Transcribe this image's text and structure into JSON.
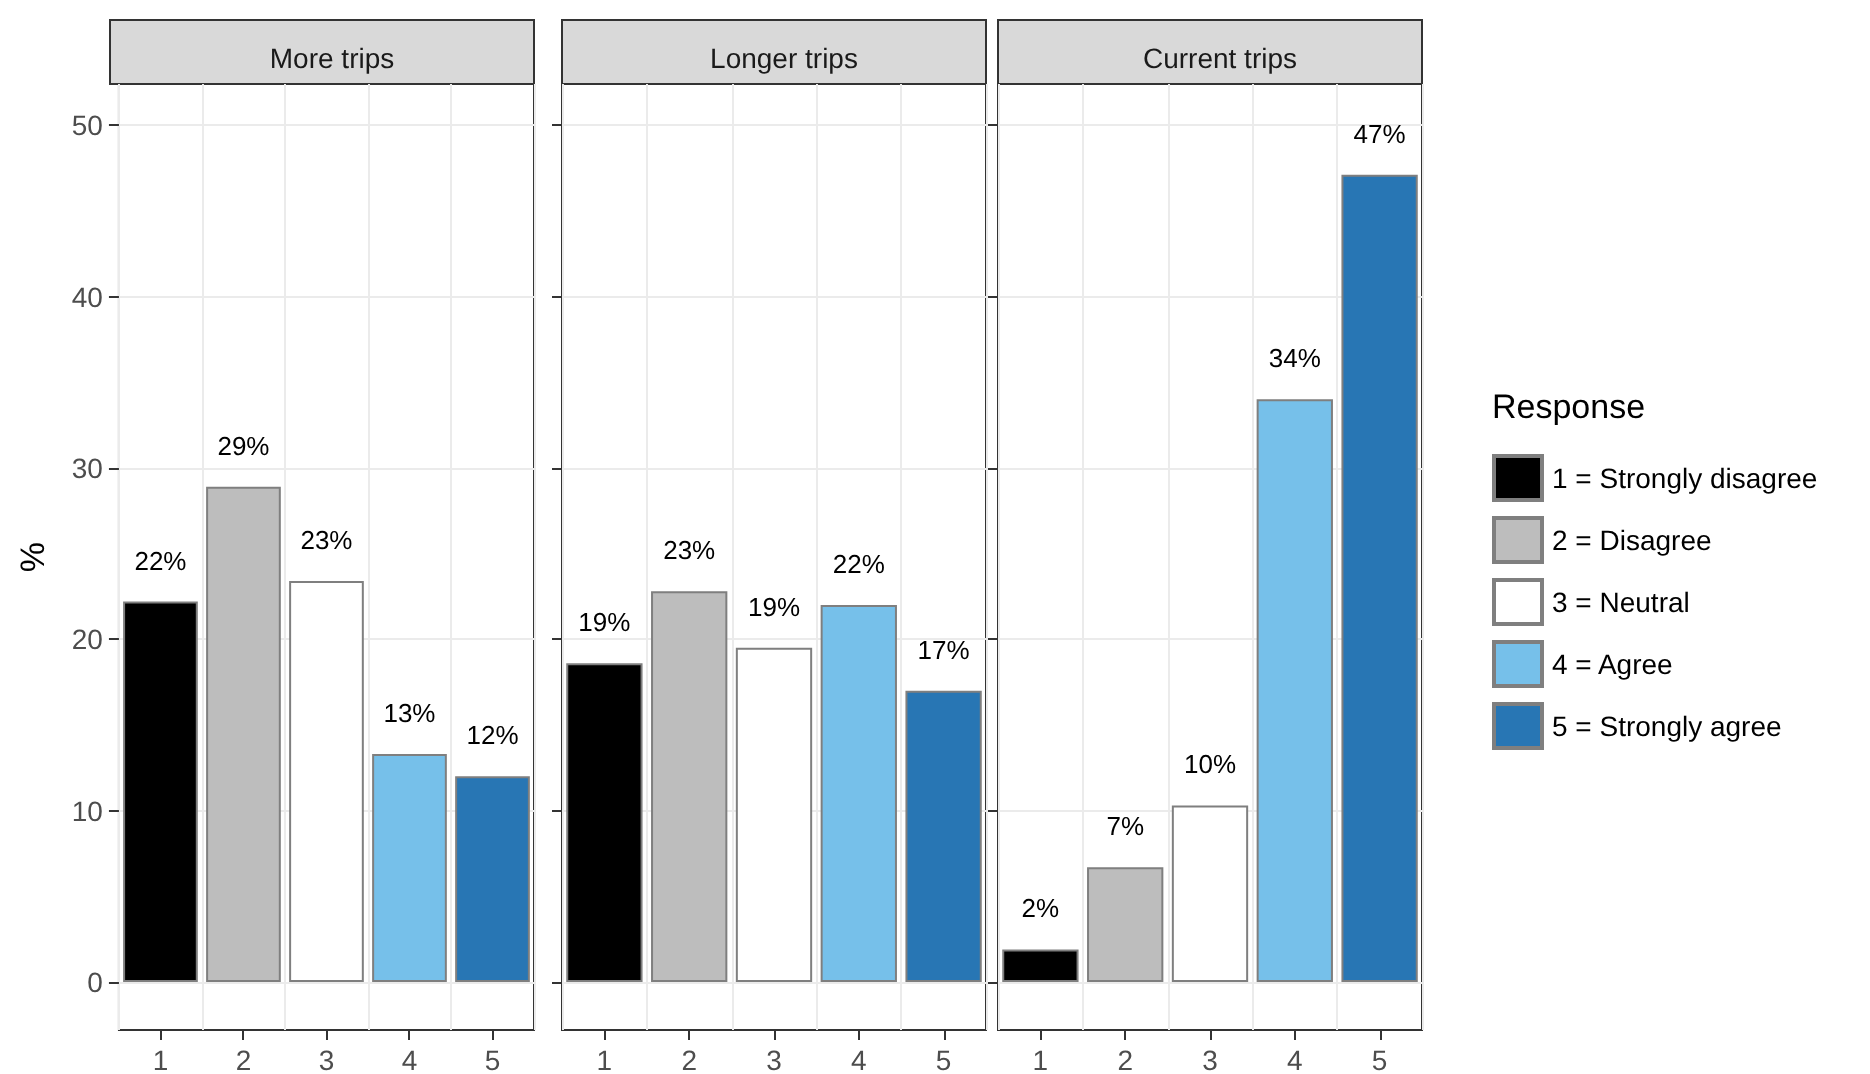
{
  "chart_data": [
    {
      "type": "bar",
      "title": "More trips",
      "ylabel": "%",
      "categories": [
        "1",
        "2",
        "3",
        "4",
        "5"
      ],
      "stacked": true,
      "ylim": [
        -2.8,
        52.4
      ],
      "yticks": [
        0,
        10,
        20,
        30,
        40,
        50
      ],
      "grid": true,
      "legend": false,
      "series": [
        {
          "color": "#000000",
          "values": [
            22.2,
            null,
            null,
            null,
            null
          ],
          "value_labels": [
            "22%",
            null,
            null,
            null,
            null
          ]
        },
        {
          "color": "#bdbdbd",
          "values": [
            null,
            28.9,
            null,
            null,
            null
          ],
          "value_labels": [
            null,
            "29%",
            null,
            null,
            null
          ]
        },
        {
          "color": "#ffffff",
          "values": [
            null,
            null,
            23.4,
            null,
            null
          ],
          "value_labels": [
            null,
            null,
            "23%",
            null,
            null
          ]
        },
        {
          "color": "#76c0ea",
          "values": [
            null,
            null,
            null,
            13.3,
            null
          ],
          "value_labels": [
            null,
            null,
            null,
            "13%",
            null
          ]
        },
        {
          "color": "#2876b4",
          "values": [
            null,
            null,
            null,
            null,
            12.0
          ],
          "value_labels": [
            null,
            null,
            null,
            null,
            "12%"
          ]
        }
      ]
    },
    {
      "type": "bar",
      "title": "Longer trips",
      "categories": [
        "1",
        "2",
        "3",
        "4",
        "5"
      ],
      "stacked": true,
      "ylim": [
        -2.8,
        52.4
      ],
      "yticks": [
        0,
        10,
        20,
        30,
        40,
        50
      ],
      "grid": true,
      "legend": false,
      "tick_labels": "x",
      "series": [
        {
          "color": "#000000",
          "values": [
            18.6,
            null,
            null,
            null,
            null
          ],
          "value_labels": [
            "19%",
            null,
            null,
            null,
            null
          ]
        },
        {
          "color": "#bdbdbd",
          "values": [
            null,
            22.8,
            null,
            null,
            null
          ],
          "value_labels": [
            null,
            "23%",
            null,
            null,
            null
          ]
        },
        {
          "color": "#ffffff",
          "values": [
            null,
            null,
            19.5,
            null,
            null
          ],
          "value_labels": [
            null,
            null,
            "19%",
            null,
            null
          ]
        },
        {
          "color": "#76c0ea",
          "values": [
            null,
            null,
            null,
            22.0,
            null
          ],
          "value_labels": [
            null,
            null,
            null,
            "22%",
            null
          ]
        },
        {
          "color": "#2876b4",
          "values": [
            null,
            null,
            null,
            null,
            17.0
          ],
          "value_labels": [
            null,
            null,
            null,
            null,
            "17%"
          ]
        }
      ]
    },
    {
      "type": "bar",
      "title": "Current trips",
      "categories": [
        "1",
        "2",
        "3",
        "4",
        "5"
      ],
      "stacked": true,
      "ylim": [
        -2.8,
        52.4
      ],
      "yticks": [
        0,
        10,
        20,
        30,
        40,
        50
      ],
      "grid": true,
      "legend": "right",
      "legend_title": "Response",
      "tick_labels": "x",
      "series": [
        {
          "name": "1 = Strongly disagree",
          "color": "#000000",
          "values": [
            1.9,
            null,
            null,
            null,
            null
          ],
          "value_labels": [
            "2%",
            null,
            null,
            null,
            null
          ]
        },
        {
          "name": "2 = Disagree",
          "color": "#bdbdbd",
          "values": [
            null,
            6.7,
            null,
            null,
            null
          ],
          "value_labels": [
            null,
            "7%",
            null,
            null,
            null
          ]
        },
        {
          "name": "3 = Neutral",
          "color": "#ffffff",
          "values": [
            null,
            null,
            10.3,
            null,
            null
          ],
          "value_labels": [
            null,
            null,
            "10%",
            null,
            null
          ]
        },
        {
          "name": "4 = Agree",
          "color": "#76c0ea",
          "values": [
            null,
            null,
            null,
            34.0,
            null
          ],
          "value_labels": [
            null,
            null,
            null,
            "34%",
            null
          ]
        },
        {
          "name": "5 = Strongly agree",
          "color": "#2876b4",
          "values": [
            null,
            null,
            null,
            null,
            47.1
          ],
          "value_labels": [
            null,
            null,
            null,
            null,
            "47%"
          ]
        }
      ]
    }
  ]
}
